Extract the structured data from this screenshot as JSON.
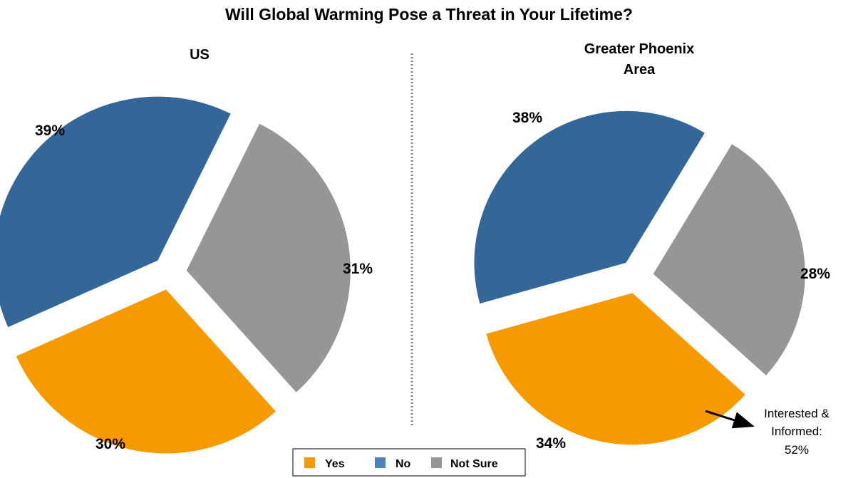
{
  "chart_data": {
    "type": "pie",
    "title": "Will Global Warming Pose a Threat in Your Lifetime?",
    "legend": {
      "placement": "bottom-center",
      "entries": [
        {
          "label": "Yes",
          "color": "#f79a00"
        },
        {
          "label": "No",
          "color": "#4f81bd"
        },
        {
          "label": "Not Sure",
          "color": "#969696"
        }
      ]
    },
    "charts": [
      {
        "subtitle": "US",
        "slices": [
          {
            "category": "Yes",
            "value": 30,
            "label": "30%",
            "color": "#f79a00"
          },
          {
            "category": "No",
            "value": 39,
            "label": "39%",
            "color": "#336699"
          },
          {
            "category": "Not Sure",
            "value": 31,
            "label": "31%",
            "color": "#969696"
          }
        ]
      },
      {
        "subtitle_lines": [
          "Greater Phoenix",
          "Area"
        ],
        "slices": [
          {
            "category": "Yes",
            "value": 34,
            "label": "34%",
            "color": "#f79a00"
          },
          {
            "category": "No",
            "value": 38,
            "label": "38%",
            "color": "#336699"
          },
          {
            "category": "Not Sure",
            "value": 28,
            "label": "28%",
            "color": "#969696"
          }
        ],
        "annotation_lines": [
          "Interested &",
          "Informed:",
          "52%"
        ]
      }
    ]
  }
}
